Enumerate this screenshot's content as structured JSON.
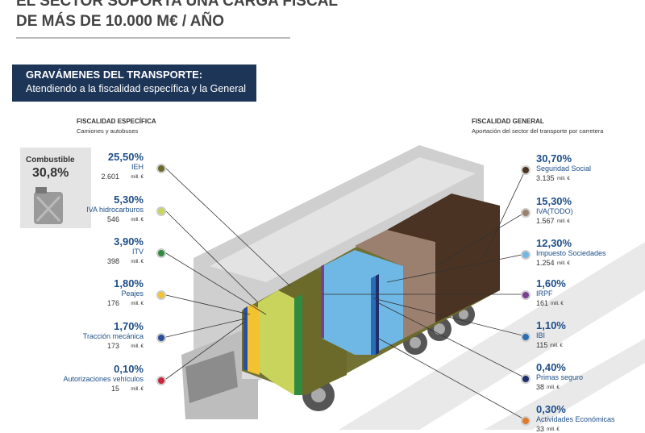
{
  "header": {
    "title_line1": "EL SECTOR SOPORTA UNA CARGA FISCAL",
    "title_line2": "DE MÁS DE 10.000 M€ / AÑO"
  },
  "banner": {
    "title": "GRAVÁMENES DEL TRANSPORTE:",
    "subtitle": "Atendiendo a la fiscalidad específica y la General"
  },
  "unit": "mill. €",
  "fuel": {
    "label": "Combustible",
    "percent": "30,8%"
  },
  "left": {
    "heading": "FISCALIDAD ESPECÍFICA",
    "subheading": "Camiones y autobuses",
    "items": [
      {
        "percent": "25,50%",
        "name": "IEH",
        "amount": "2.601",
        "color": "#6b6a2a"
      },
      {
        "percent": "5,30%",
        "name": "IVA hidrocarburos",
        "amount": "546",
        "color": "#c9d45c"
      },
      {
        "percent": "3,90%",
        "name": "ITV",
        "amount": "398",
        "color": "#2f8b40"
      },
      {
        "percent": "1,80%",
        "name": "Peajes",
        "amount": "176",
        "color": "#f2c230"
      },
      {
        "percent": "1,70%",
        "name": "Tracción mecánica",
        "amount": "173",
        "color": "#2b4f9c"
      },
      {
        "percent": "0,10%",
        "name": "Autorizaciones vehículos",
        "amount": "15",
        "color": "#c8283c"
      }
    ]
  },
  "right": {
    "heading": "FISCALIDAD GENERAL",
    "subheading": "Aportación del sector del transporte por carretera",
    "items": [
      {
        "percent": "30,70%",
        "name": "Seguridad Social",
        "amount": "3.135",
        "color": "#4a3322"
      },
      {
        "percent": "15,30%",
        "name": "IVA(TODO)",
        "amount": "1.567",
        "color": "#9c806f"
      },
      {
        "percent": "12,30%",
        "name": "Impuesto Sociedades",
        "amount": "1.254",
        "color": "#6fb7e4"
      },
      {
        "percent": "1,60%",
        "name": "IRPF",
        "amount": "161",
        "color": "#7b3f8f"
      },
      {
        "percent": "1,10%",
        "name": "IBI",
        "amount": "115",
        "color": "#2a6db5"
      },
      {
        "percent": "0,40%",
        "name": "Primas seguro",
        "amount": "38",
        "color": "#1f2f6e"
      },
      {
        "percent": "0,30%",
        "name": "Actividades Económicas",
        "amount": "33",
        "color": "#e07a2a"
      }
    ]
  }
}
